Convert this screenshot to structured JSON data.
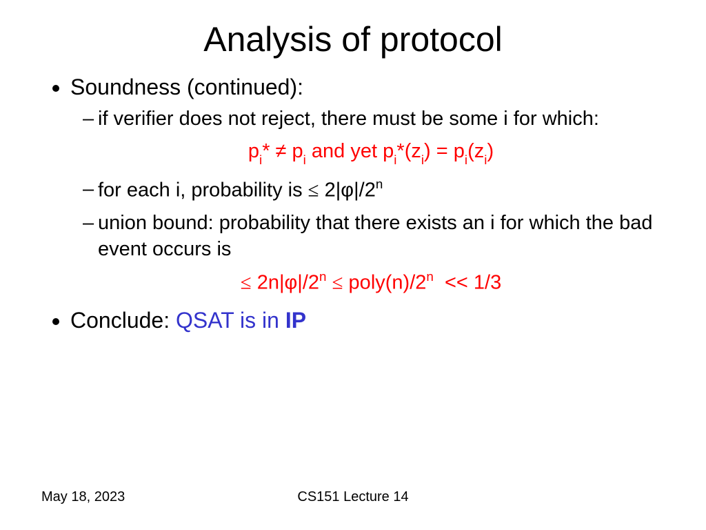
{
  "title": "Analysis of protocol",
  "bullet1": "Soundness (continued):",
  "sub1": "if verifier does not reject, there must be some i for which:",
  "formula1_parts": {
    "p": "p",
    "i": "i",
    "star_neq": "* ≠ p",
    "and_yet": "  and yet p",
    "star_z": "*(z",
    "close_eq": ") = p",
    "open_z": "(z",
    "close": ")"
  },
  "sub2_a": "for each i, probability is ",
  "sub2_b": " 2|φ|/2",
  "sub2_n": "n",
  "leq": "≤",
  "sub3": "union bound: probability that there exists an i for which the bad event occurs is",
  "formula2_a": " 2n|φ|/2",
  "formula2_b": " poly(n)/2",
  "formula2_c": " << 1/3",
  "n": "n",
  "bullet2_a": "Conclude: ",
  "bullet2_b": "QSAT is in ",
  "bullet2_c": "IP",
  "footer_date": "May 18, 2023",
  "footer_center": "CS151 Lecture 14",
  "colors": {
    "red": "#ff0000",
    "blue": "#3333cc",
    "text": "#000000",
    "background": "#ffffff"
  },
  "fontsizes": {
    "title": 50,
    "body": 32,
    "sub": 29,
    "footer": 20
  }
}
